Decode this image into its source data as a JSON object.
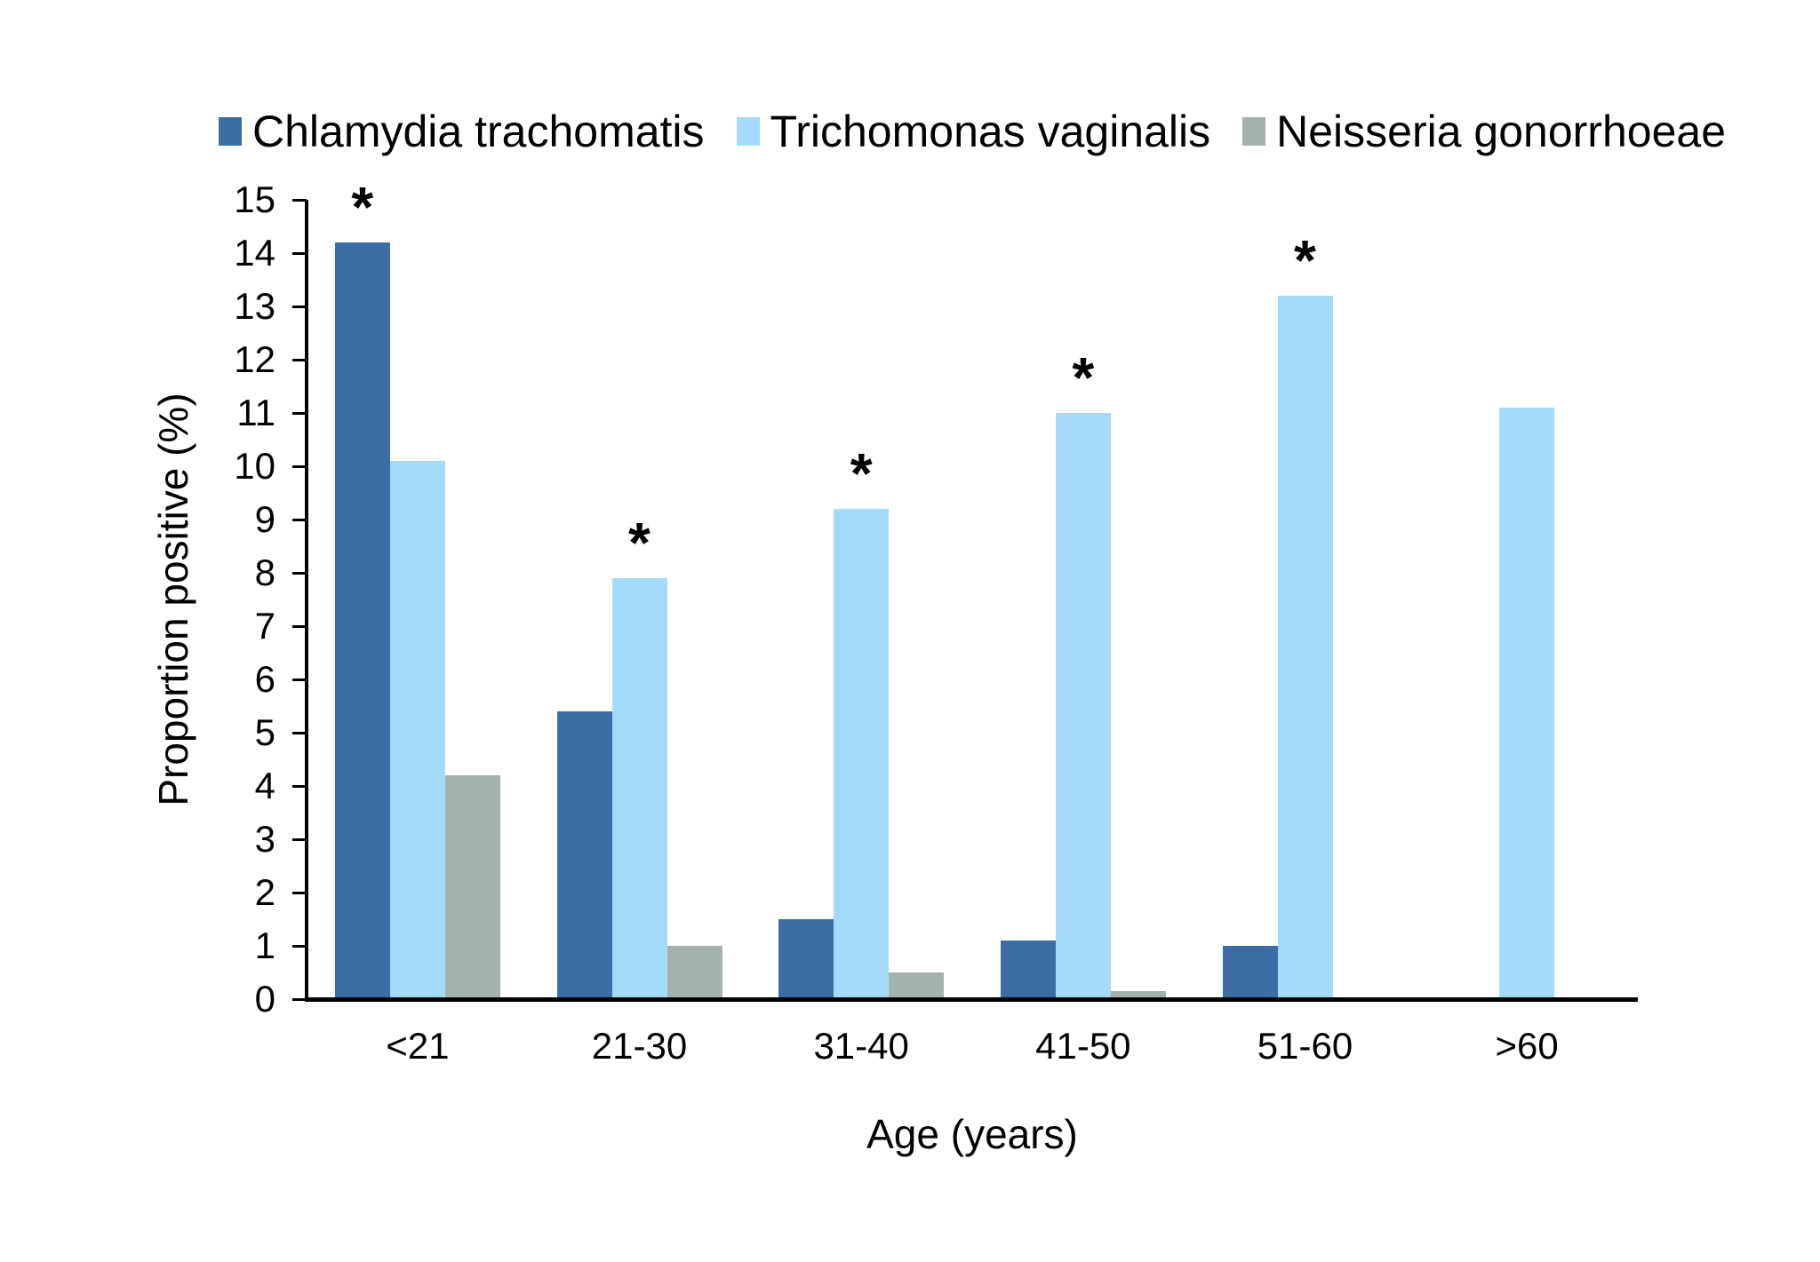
{
  "figure": {
    "background": "#FFFFFF"
  },
  "chart_data": {
    "type": "bar",
    "title": "",
    "xlabel": "Age (years)",
    "ylabel": "Proportion positive (%)",
    "ylim": [
      0,
      15
    ],
    "ytick_step": 1,
    "yticks": [
      0,
      1,
      2,
      3,
      4,
      5,
      6,
      7,
      8,
      9,
      10,
      11,
      12,
      13,
      14,
      15
    ],
    "categories": [
      "<21",
      "21-30",
      "31-40",
      "41-50",
      "51-60",
      ">60"
    ],
    "series": [
      {
        "name": "Chlamydia trachomatis",
        "color": "#3C6EA5",
        "values": [
          14.2,
          5.4,
          1.5,
          1.1,
          1.0,
          0
        ],
        "significant": [
          true,
          false,
          false,
          false,
          false,
          false
        ]
      },
      {
        "name": "Trichomonas vaginalis",
        "color": "#A4DBFA",
        "values": [
          10.1,
          7.9,
          9.2,
          11.0,
          13.2,
          11.1
        ],
        "significant": [
          false,
          true,
          true,
          true,
          true,
          false
        ]
      },
      {
        "name": "Neisseria gonorrhoeae",
        "color": "#A5B1AF",
        "values": [
          4.2,
          1.0,
          0.5,
          0.15,
          0,
          0
        ],
        "significant": [
          false,
          false,
          false,
          false,
          false,
          false
        ]
      }
    ],
    "significance_marker": "*",
    "legend_position": "top",
    "grid": false,
    "axis_color": "#000000",
    "text_color": "#000000"
  }
}
